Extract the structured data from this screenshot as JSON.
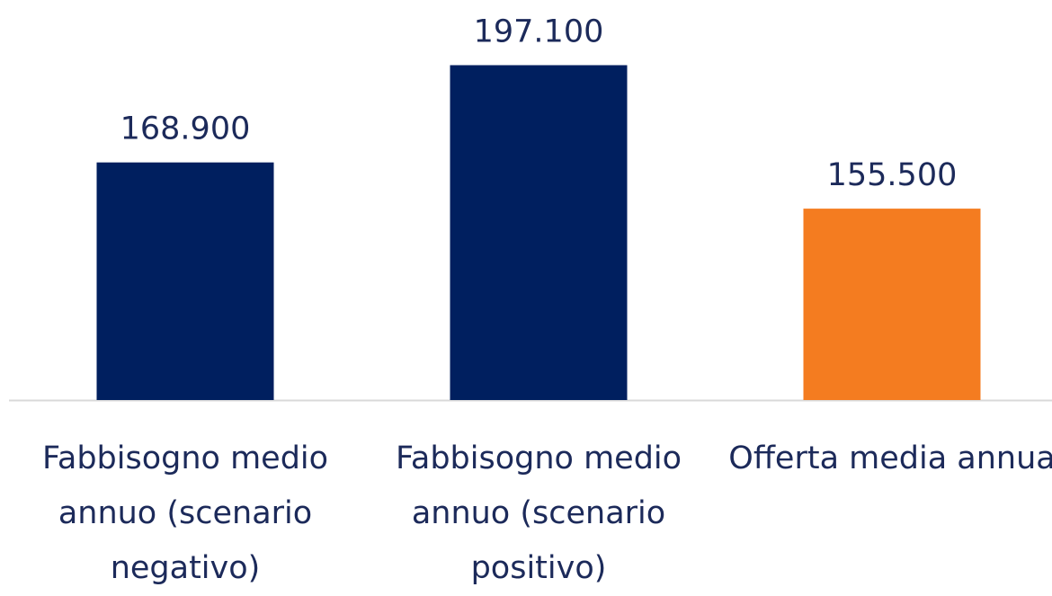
{
  "chart_data": {
    "type": "bar",
    "categories": [
      "Fabbisogno medio annuo (scenario negativo)",
      "Fabbisogno medio annuo (scenario positivo)",
      "Offerta media annua"
    ],
    "values": [
      168900,
      197100,
      155500
    ],
    "value_labels": [
      "168.900",
      "197.100",
      "155.500"
    ],
    "colors": [
      "#001f5f",
      "#001f5f",
      "#f47c20"
    ],
    "ylim": [
      100000,
      216000
    ]
  }
}
